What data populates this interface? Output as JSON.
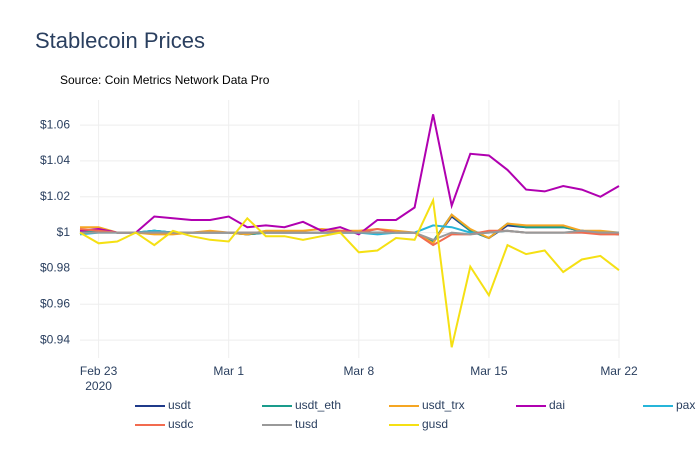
{
  "chart_data": {
    "type": "line",
    "title": "Stablecoin Prices",
    "subtitle": "Source: Coin Metrics Network Data Pro",
    "x": [
      "2020-02-22",
      "2020-02-23",
      "2020-02-24",
      "2020-02-25",
      "2020-02-26",
      "2020-02-27",
      "2020-02-28",
      "2020-02-29",
      "2020-03-01",
      "2020-03-02",
      "2020-03-03",
      "2020-03-04",
      "2020-03-05",
      "2020-03-06",
      "2020-03-07",
      "2020-03-08",
      "2020-03-09",
      "2020-03-10",
      "2020-03-11",
      "2020-03-12",
      "2020-03-13",
      "2020-03-14",
      "2020-03-15",
      "2020-03-16",
      "2020-03-17",
      "2020-03-18",
      "2020-03-19",
      "2020-03-20",
      "2020-03-21",
      "2020-03-22"
    ],
    "xlim": [
      "2020-02-22",
      "2020-03-22"
    ],
    "xticks": [
      {
        "value": "2020-02-23",
        "label": [
          "Feb 23",
          "2020"
        ]
      },
      {
        "value": "2020-03-01",
        "label": [
          "Mar 1"
        ]
      },
      {
        "value": "2020-03-08",
        "label": [
          "Mar 8"
        ]
      },
      {
        "value": "2020-03-15",
        "label": [
          "Mar 15"
        ]
      },
      {
        "value": "2020-03-22",
        "label": [
          "Mar 22"
        ]
      }
    ],
    "ylim": [
      0.93,
      1.074
    ],
    "yticks": [
      {
        "value": 0.94,
        "label": "$0.94"
      },
      {
        "value": 0.96,
        "label": "$0.96"
      },
      {
        "value": 0.98,
        "label": "$0.98"
      },
      {
        "value": 1,
        "label": "$1"
      },
      {
        "value": 1.02,
        "label": "$1.02"
      },
      {
        "value": 1.04,
        "label": "$1.04"
      },
      {
        "value": 1.06,
        "label": "$1.06"
      }
    ],
    "grid": true,
    "series": [
      {
        "name": "usdt",
        "color": "#1f3a8a",
        "values": [
          1.0,
          1.001,
          1.0,
          1.0,
          1.001,
          1.0,
          1.0,
          1.0,
          1.0,
          0.999,
          1.0,
          1.0,
          1.0,
          1.0,
          1.0,
          1.0,
          1.0,
          1.0,
          1.0,
          0.995,
          1.009,
          1.001,
          0.997,
          1.004,
          1.003,
          1.003,
          1.003,
          1.001,
          1.0,
          0.999
        ]
      },
      {
        "name": "usdt_eth",
        "color": "#1a9c8c",
        "values": [
          1.0,
          1.001,
          1.0,
          1.0,
          1.001,
          1.0,
          1.0,
          1.0,
          1.0,
          0.999,
          1.0,
          1.0,
          1.0,
          1.0,
          1.0,
          1.0,
          1.0,
          1.0,
          1.0,
          0.995,
          1.01,
          1.001,
          0.997,
          1.005,
          1.003,
          1.003,
          1.003,
          1.001,
          1.0,
          0.999
        ]
      },
      {
        "name": "usdt_trx",
        "color": "#f5a623",
        "values": [
          1.003,
          1.003,
          1.0,
          1.0,
          0.999,
          0.999,
          1.0,
          1.001,
          1.0,
          0.999,
          1.001,
          1.001,
          1.001,
          1.002,
          1.001,
          1.001,
          1.002,
          1.001,
          1.0,
          0.994,
          1.01,
          1.002,
          0.997,
          1.005,
          1.004,
          1.004,
          1.004,
          1.001,
          1.001,
          1.0
        ]
      },
      {
        "name": "dai",
        "color": "#b000b0",
        "values": [
          1.001,
          1.002,
          1.0,
          1.0,
          1.009,
          1.008,
          1.007,
          1.007,
          1.009,
          1.003,
          1.004,
          1.003,
          1.006,
          1.001,
          1.003,
          0.999,
          1.007,
          1.007,
          1.014,
          1.066,
          1.015,
          1.044,
          1.043,
          1.035,
          1.024,
          1.023,
          1.026,
          1.024,
          1.02,
          1.026
        ]
      },
      {
        "name": "pax",
        "color": "#26b5d9",
        "values": [
          0.999,
          1.0,
          1.0,
          1.0,
          1.001,
          1.0,
          1.0,
          1.0,
          1.0,
          1.0,
          1.0,
          1.0,
          1.0,
          1.0,
          1.0,
          1.0,
          0.999,
          1.0,
          1.0,
          1.004,
          1.003,
          1.0,
          1.0,
          1.001,
          1.0,
          1.0,
          1.0,
          1.0,
          1.0,
          1.0
        ]
      },
      {
        "name": "usdc",
        "color": "#f26b4f",
        "values": [
          1.002,
          1.001,
          1.0,
          1.0,
          1.0,
          1.0,
          1.0,
          1.0,
          1.0,
          1.0,
          1.0,
          1.0,
          1.0,
          1.0,
          1.001,
          1.0,
          1.002,
          1.0,
          1.0,
          0.993,
          0.999,
          0.999,
          1.001,
          1.001,
          1.0,
          1.0,
          1.0,
          1.0,
          0.999,
          0.999
        ]
      },
      {
        "name": "tusd",
        "color": "#999999",
        "values": [
          1.0,
          1.0,
          1.0,
          1.0,
          1.0,
          1.0,
          1.0,
          1.0,
          1.0,
          1.0,
          1.0,
          1.0,
          1.0,
          1.0,
          1.0,
          1.0,
          1.0,
          1.0,
          1.0,
          0.996,
          1.0,
          0.999,
          1.0,
          1.001,
          1.0,
          1.0,
          1.0,
          1.001,
          1.0,
          1.0
        ]
      },
      {
        "name": "gusd",
        "color": "#f5e013",
        "values": [
          1.0,
          0.994,
          0.995,
          1.0,
          0.993,
          1.001,
          0.998,
          0.996,
          0.995,
          1.008,
          0.998,
          0.998,
          0.996,
          0.998,
          1.0,
          0.989,
          0.99,
          0.997,
          0.996,
          1.018,
          0.936,
          0.981,
          0.965,
          0.993,
          0.988,
          0.99,
          0.978,
          0.985,
          0.987,
          0.979
        ]
      }
    ]
  }
}
